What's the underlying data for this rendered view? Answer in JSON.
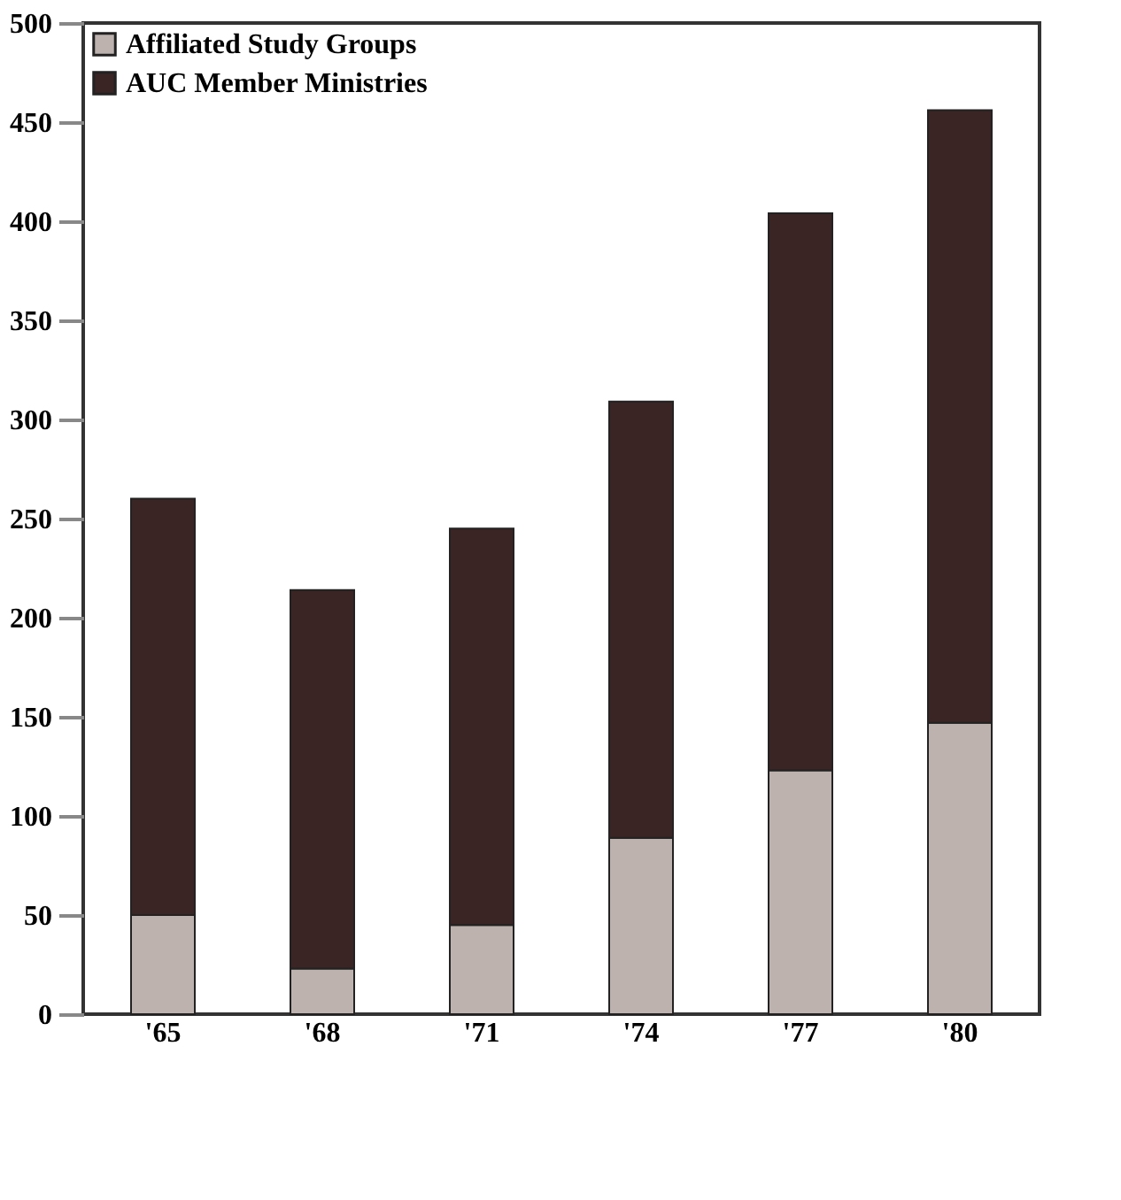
{
  "chart_data": {
    "type": "bar",
    "stacked": true,
    "categories": [
      "'65",
      "'68",
      "'71",
      "'74",
      "'77",
      "'80"
    ],
    "series": [
      {
        "name": "Affiliated Study Groups",
        "color": "#bdb2ad",
        "values": [
          50,
          23,
          45,
          89,
          123,
          147
        ]
      },
      {
        "name": "AUC Member Ministries",
        "color": "#3a2424",
        "values": [
          210,
          191,
          200,
          220,
          281,
          309
        ]
      }
    ],
    "ylim": [
      0,
      500
    ],
    "yticks": [
      0,
      50,
      100,
      150,
      200,
      250,
      300,
      350,
      400,
      450,
      500
    ],
    "grid": false,
    "legend": "top left"
  }
}
